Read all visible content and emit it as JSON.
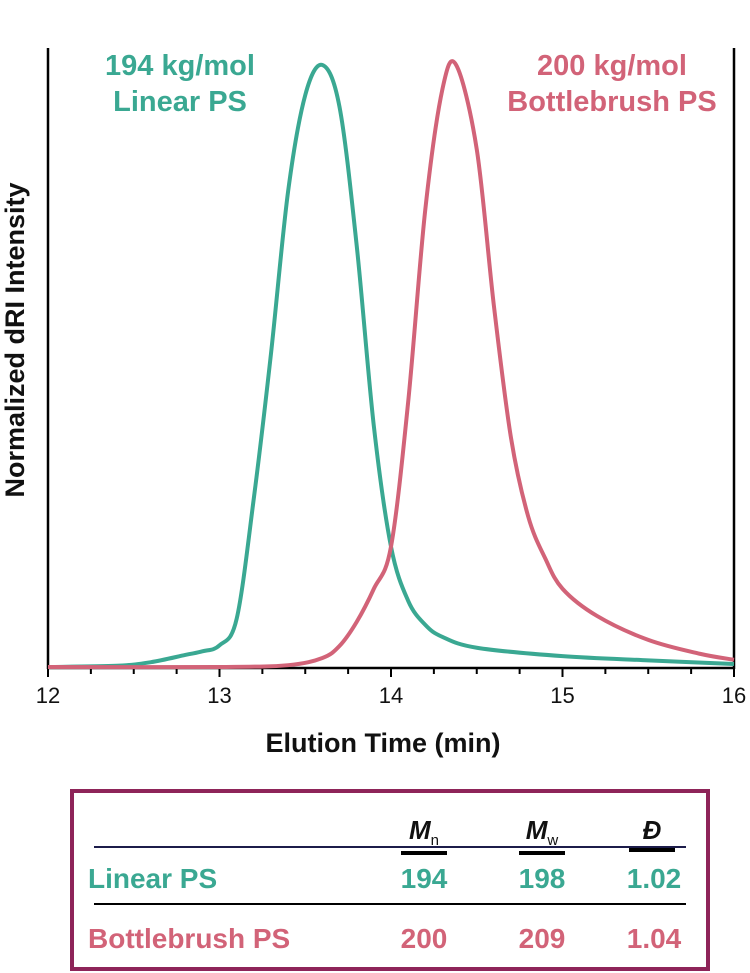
{
  "chart_data": {
    "type": "line",
    "xlabel": "Elution Time (min)",
    "ylabel": "Normalized dRI Intensity",
    "xlim": [
      12,
      16
    ],
    "ylim": [
      0,
      1
    ],
    "xticks": [
      "12",
      "13",
      "14",
      "15",
      "16"
    ],
    "minor_tick_step": 0.25,
    "grid": false,
    "series": [
      {
        "name": "Linear PS",
        "annotation": [
          "194 kg/mol",
          "Linear PS"
        ],
        "color": "#3aa892",
        "x": [
          12.0,
          12.4,
          12.6,
          12.8,
          12.9,
          13.0,
          13.1,
          13.2,
          13.3,
          13.4,
          13.5,
          13.6,
          13.7,
          13.8,
          13.9,
          14.0,
          14.1,
          14.2,
          14.3,
          14.5,
          15.0,
          15.5,
          16.0
        ],
        "y": [
          0.0,
          0.002,
          0.008,
          0.02,
          0.026,
          0.036,
          0.08,
          0.28,
          0.52,
          0.79,
          0.95,
          1.0,
          0.93,
          0.7,
          0.4,
          0.2,
          0.11,
          0.07,
          0.05,
          0.032,
          0.018,
          0.011,
          0.005
        ]
      },
      {
        "name": "Bottlebrush PS",
        "annotation": [
          "200 kg/mol",
          "Bottlebrush PS"
        ],
        "color": "#d26378",
        "x": [
          12.0,
          13.0,
          13.4,
          13.6,
          13.7,
          13.8,
          13.9,
          14.0,
          14.1,
          14.2,
          14.3,
          14.38,
          14.5,
          14.6,
          14.7,
          14.8,
          14.9,
          15.0,
          15.2,
          15.5,
          15.8,
          16.0
        ],
        "y": [
          0.0,
          0.0,
          0.003,
          0.015,
          0.035,
          0.075,
          0.13,
          0.2,
          0.44,
          0.76,
          0.96,
          1.0,
          0.86,
          0.6,
          0.38,
          0.25,
          0.18,
          0.13,
          0.085,
          0.045,
          0.022,
          0.012
        ]
      }
    ]
  },
  "table": {
    "headers": [
      {
        "main": "M",
        "sub": "n"
      },
      {
        "main": "M",
        "sub": "w"
      },
      {
        "main": "Đ",
        "sub": ""
      }
    ],
    "rows": [
      {
        "label": "Linear PS",
        "values": [
          "194",
          "198",
          "1.02"
        ],
        "color": "#3aa892"
      },
      {
        "label": "Bottlebrush PS",
        "values": [
          "200",
          "209",
          "1.04"
        ],
        "color": "#d26378"
      }
    ],
    "border_color": "#8e2459"
  }
}
